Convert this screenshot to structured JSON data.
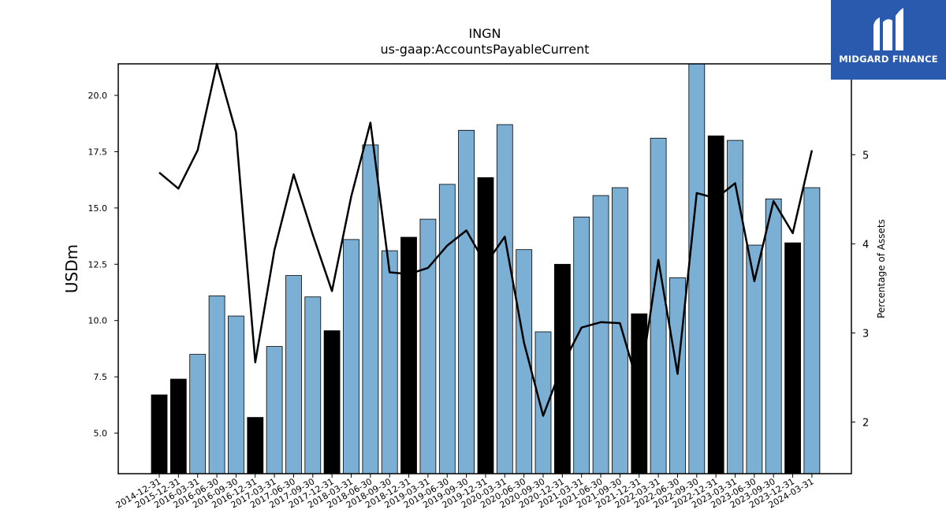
{
  "chart_data": {
    "type": "bar",
    "title": "INGN",
    "subtitle": "us-gaap:AccountsPayableCurrent",
    "ylabel": "USDm",
    "y2label": "Percentage of Assets",
    "ylim": [
      3.2,
      21.4
    ],
    "y2lim": [
      1.42,
      6.02
    ],
    "yticks": [
      "5.0",
      "7.5",
      "10.0",
      "12.5",
      "15.0",
      "17.5",
      "20.0"
    ],
    "y2ticks": [
      "2",
      "3",
      "4",
      "5"
    ],
    "categories": [
      "2014-12-31",
      "2015-12-31",
      "2016-03-31",
      "2016-06-30",
      "2016-09-30",
      "2016-12-31",
      "2017-03-31",
      "2017-06-30",
      "2017-09-30",
      "2017-12-31",
      "2018-03-31",
      "2018-06-30",
      "2018-09-30",
      "2018-12-31",
      "2019-03-31",
      "2019-06-30",
      "2019-09-30",
      "2019-12-31",
      "2020-03-31",
      "2020-06-30",
      "2020-09-30",
      "2020-12-31",
      "2021-03-31",
      "2021-06-30",
      "2021-09-30",
      "2021-12-31",
      "2022-03-31",
      "2022-06-30",
      "2022-09-30",
      "2022-12-31",
      "2023-03-31",
      "2023-06-30",
      "2023-09-30",
      "2023-12-31",
      "2024-03-31"
    ],
    "series": [
      {
        "values": [
          6.7,
          7.4,
          8.5,
          11.1,
          10.2,
          5.7,
          8.85,
          12.0,
          11.05,
          9.55,
          13.6,
          17.8,
          13.1,
          13.7,
          14.5,
          16.05,
          18.45,
          16.35,
          18.7,
          13.15,
          9.5,
          12.5,
          14.6,
          15.55,
          15.9,
          10.3,
          18.1,
          11.9,
          21.4,
          18.2,
          18.0,
          13.35,
          15.4,
          13.45,
          15.9
        ]
      },
      {
        "axis": "right",
        "type": "line",
        "values": [
          4.8,
          4.62,
          5.05,
          6.02,
          5.25,
          2.67,
          3.93,
          4.78,
          4.1,
          3.47,
          4.53,
          5.36,
          3.68,
          3.66,
          3.73,
          3.98,
          4.15,
          3.77,
          4.08,
          2.89,
          2.07,
          2.64,
          3.06,
          3.12,
          3.11,
          2.37,
          3.82,
          2.54,
          4.57,
          4.51,
          4.68,
          3.58,
          4.48,
          4.12,
          5.05
        ]
      }
    ],
    "bar_highlight_indices": [
      0,
      1,
      5,
      9,
      13,
      17,
      21,
      25,
      29,
      33
    ],
    "colors": {
      "bar": "#7bafd4",
      "bar_highlight": "#000000",
      "line": "#000000",
      "bar_edge": "#000000"
    }
  },
  "logo": {
    "text": "MIDGARD FINANCE",
    "background": "#2a5aad"
  }
}
